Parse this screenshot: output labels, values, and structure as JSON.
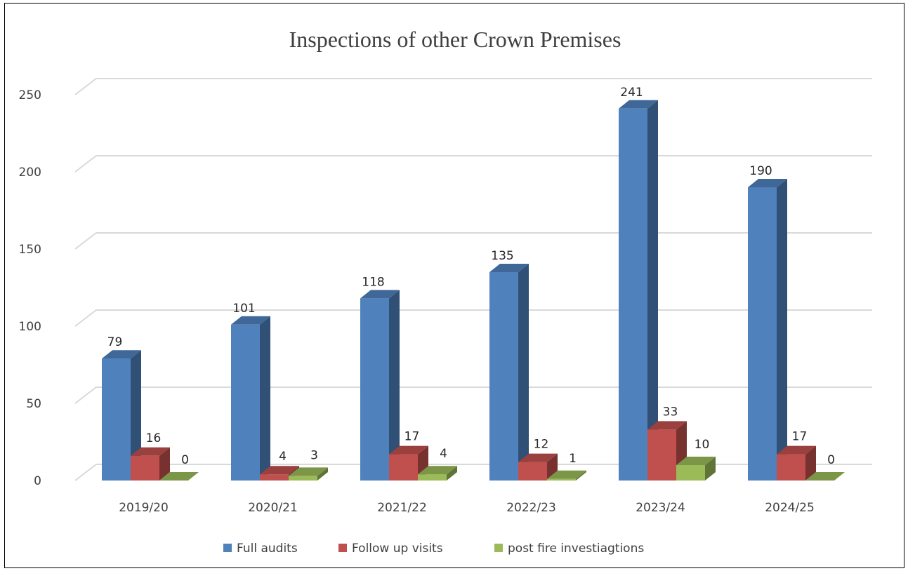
{
  "chart_data": {
    "type": "bar",
    "title": "Inspections of other Crown Premises",
    "categories": [
      "2019/20",
      "2020/21",
      "2021/22",
      "2022/23",
      "2023/24",
      "2024/25"
    ],
    "series": [
      {
        "name": "Full audits",
        "values": [
          79,
          101,
          118,
          135,
          241,
          190
        ],
        "color": "#4f81bd"
      },
      {
        "name": "Follow up visits",
        "values": [
          16,
          4,
          17,
          12,
          33,
          17
        ],
        "color": "#c0504d"
      },
      {
        "name": "post fire investiagtions",
        "values": [
          0,
          3,
          4,
          1,
          10,
          0
        ],
        "color": "#9bbb59"
      }
    ],
    "yticks": [
      0,
      50,
      100,
      150,
      200,
      250
    ],
    "ylim": [
      0,
      250
    ],
    "grid": true,
    "legend": "bottom",
    "style": "3d-clustered-column"
  }
}
